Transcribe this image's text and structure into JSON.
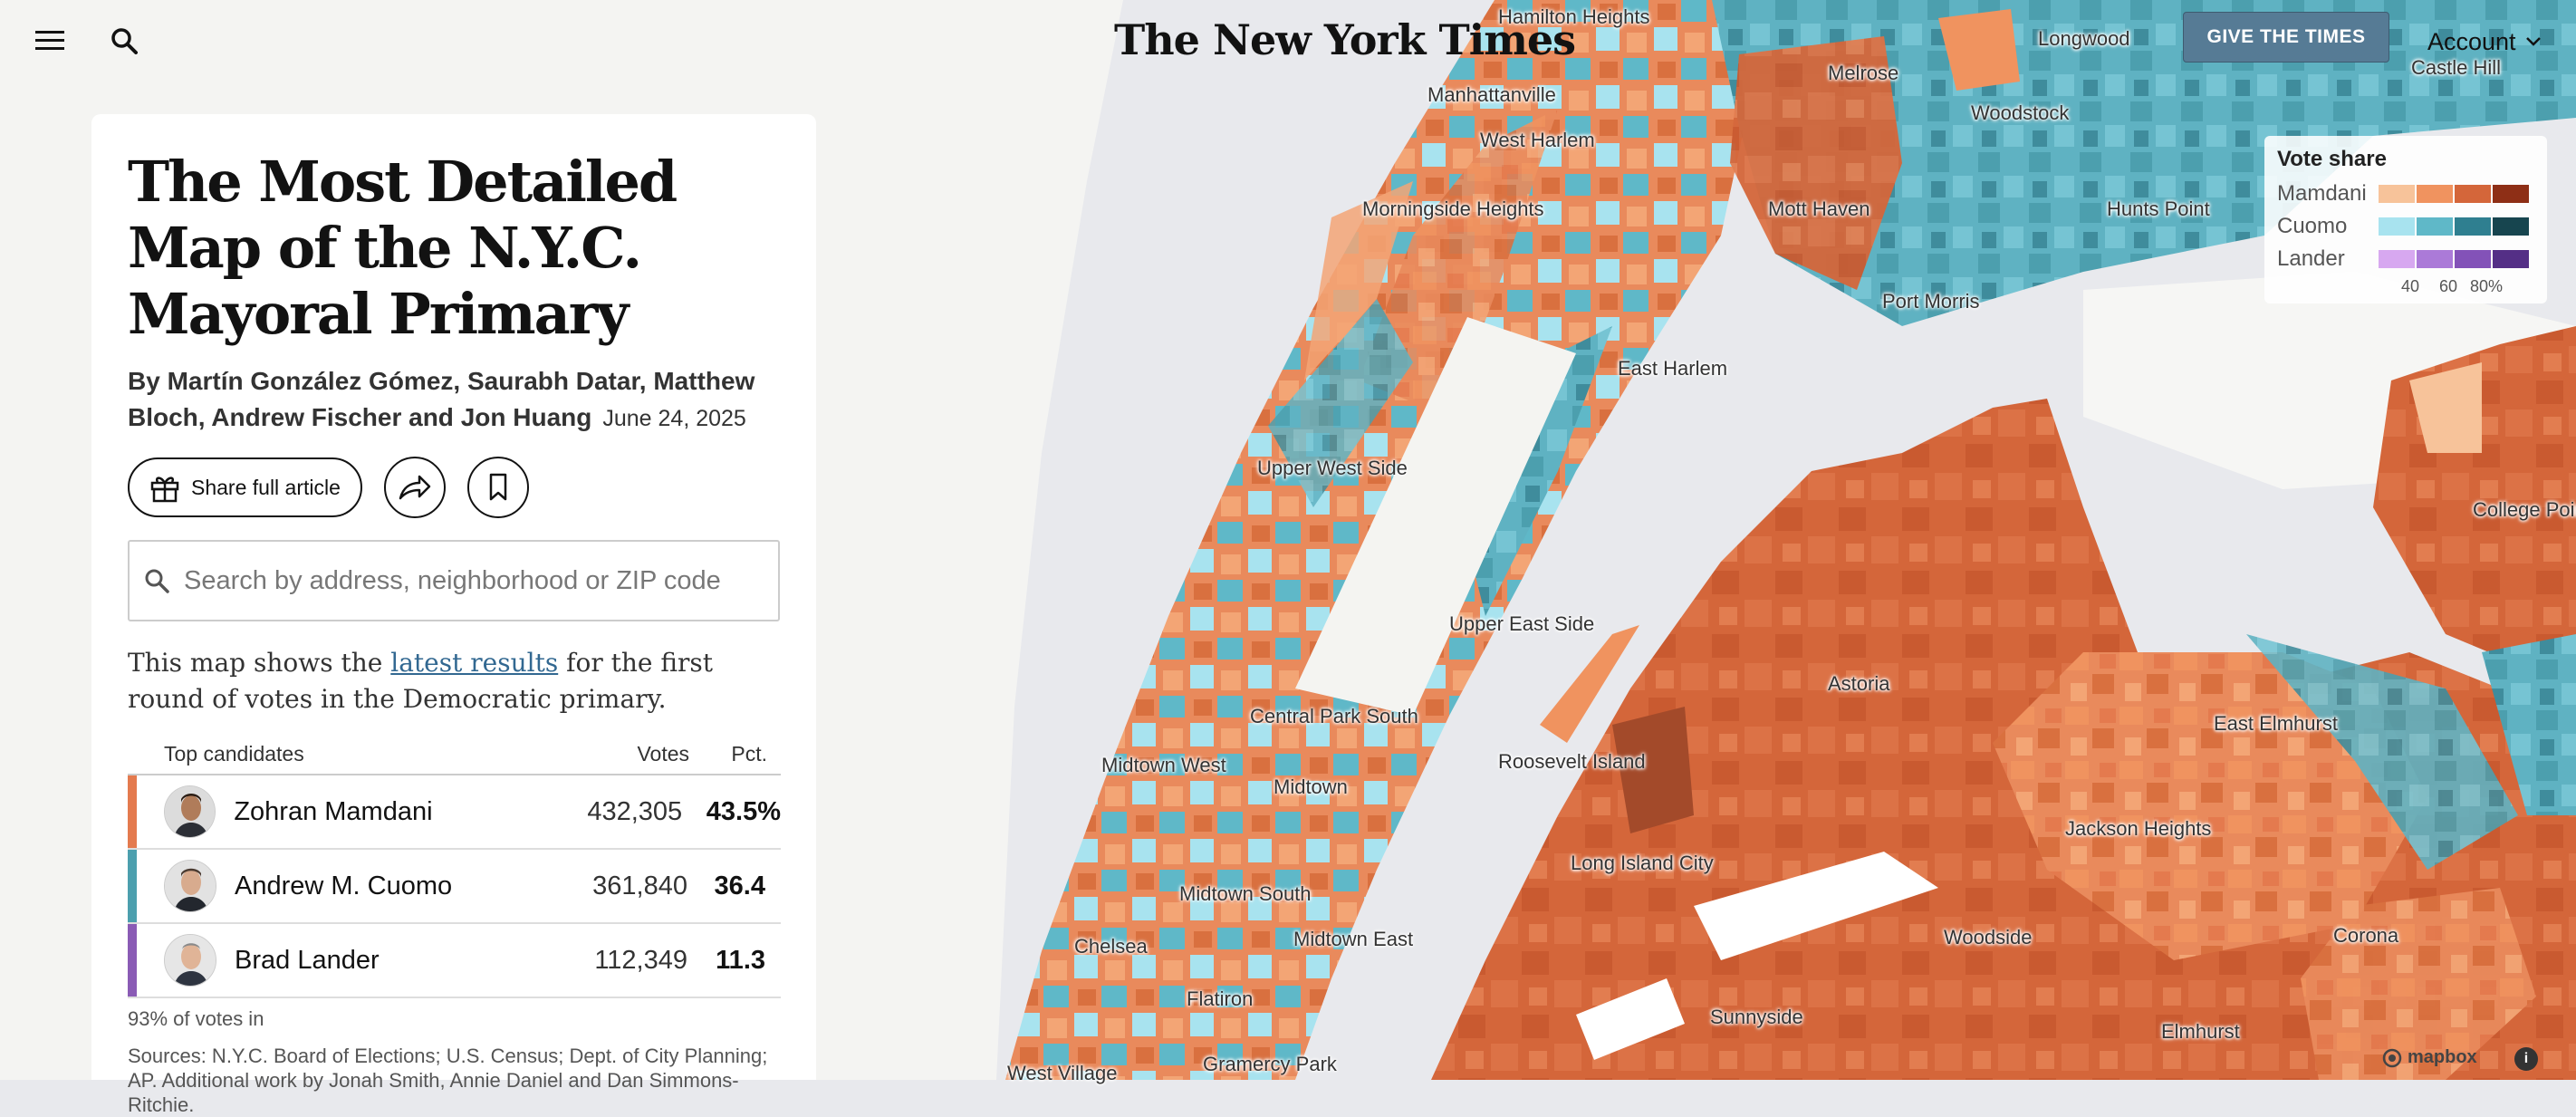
{
  "topbar": {
    "menu_icon": "hamburger-menu-icon",
    "search_icon": "search-icon",
    "logo": "The New York Times",
    "give_label": "GIVE THE TIMES",
    "account_label": "Account"
  },
  "article": {
    "headline": "The Most Detailed Map of the N.Y.C. Mayoral Primary",
    "byline": "By Martín González Gómez, Saurabh Datar, Matthew Bloch, Andrew Fischer and Jon Huang",
    "date": "June 24, 2025",
    "share_label": "Share full article",
    "search_placeholder": "Search by address, neighborhood or ZIP code",
    "intro_before": "This map shows the ",
    "intro_link": "latest results",
    "intro_after": " for the first round of votes in the Democratic primary."
  },
  "results": {
    "header_candidates": "Top candidates",
    "header_votes": "Votes",
    "header_pct": "Pct.",
    "candidates": [
      {
        "name": "Zohran Mamdani",
        "votes": "432,305",
        "pct": "43.5%",
        "color": "#e47a4e"
      },
      {
        "name": "Andrew M. Cuomo",
        "votes": "361,840",
        "pct": "36.4",
        "color": "#4c9fae"
      },
      {
        "name": "Brad Lander",
        "votes": "112,349",
        "pct": "11.3",
        "color": "#8a5bb5"
      }
    ],
    "reporting": "93% of votes in",
    "sources": "Sources: N.Y.C. Board of Elections; U.S. Census; Dept. of City Planning; AP.  Additional work by Jonah Smith, Annie Daniel and Dan Simmons-Ritchie."
  },
  "legend": {
    "title": "Vote share",
    "rows": [
      {
        "name": "Mamdani",
        "colors": [
          "#f7c39a",
          "#f0935f",
          "#d4663a",
          "#8e2f16"
        ]
      },
      {
        "name": "Cuomo",
        "colors": [
          "#a8e3ef",
          "#5fb8c8",
          "#2f7f90",
          "#17454f"
        ]
      },
      {
        "name": "Lander",
        "colors": [
          "#d7a8f0",
          "#ab7ad8",
          "#8352b8",
          "#542f86"
        ]
      }
    ],
    "ticks": [
      "40",
      "60",
      "80%"
    ]
  },
  "map": {
    "attribution": "mapbox",
    "colors": {
      "water": "#e8e9ed",
      "land": "#f6f6f4",
      "park": "#f2f2ef"
    },
    "labels": [
      "Hamilton Heights",
      "Manhattanville",
      "West Harlem",
      "Morningside Heights",
      "Upper West Side",
      "East Harlem",
      "Melrose",
      "Woodstock",
      "Longwood",
      "Castle Hill",
      "Mott Haven",
      "Hunts Point",
      "Port Morris",
      "Upper East Side",
      "Central Park South",
      "Midtown West",
      "Midtown",
      "Roosevelt Island",
      "Astoria",
      "East Elmhurst",
      "College Point",
      "Jackson Heights",
      "Long Island City",
      "Midtown South",
      "Midtown East",
      "Chelsea",
      "Flatiron",
      "Woodside",
      "Corona",
      "Sunnyside",
      "Elmhurst",
      "West Village",
      "Gramercy Park"
    ]
  }
}
